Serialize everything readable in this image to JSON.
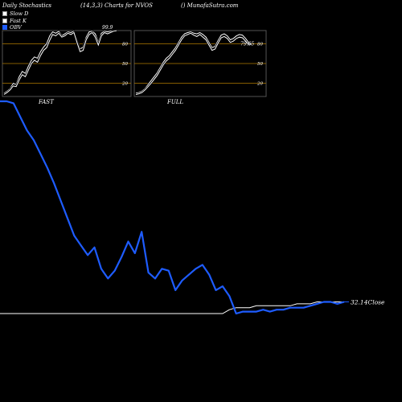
{
  "header": {
    "left": "Daily Stochastics",
    "center": "(14,3,3) Charts for NVOS",
    "right": "() MunafaSutra.com"
  },
  "legend": [
    {
      "label": "Slow D",
      "color": "#ffffff"
    },
    {
      "label": "Fast K",
      "color": "#ffffff"
    },
    {
      "label": "OBV",
      "color": "#1e5cff"
    }
  ],
  "colors": {
    "obv": "#1e5cff",
    "stoch": "#ffffff",
    "level": "#b07a00",
    "grid": "#555555"
  },
  "chart_data": [
    {
      "type": "line",
      "panel": "FAST",
      "title": "FAST",
      "ylim": [
        0,
        100
      ],
      "levels": [
        20,
        50,
        80
      ],
      "last_value_label": "99.9",
      "series": [
        {
          "values": [
            5,
            8,
            12,
            20,
            18,
            30,
            38,
            35,
            46,
            55,
            60,
            58,
            68,
            75,
            80,
            92,
            98,
            96,
            99,
            92,
            95,
            98,
            97,
            99,
            85,
            72,
            75,
            90,
            98,
            99,
            95,
            82,
            96,
            99,
            98,
            99,
            100,
            99
          ]
        },
        {
          "values": [
            3,
            6,
            10,
            16,
            15,
            25,
            33,
            30,
            40,
            50,
            55,
            52,
            62,
            70,
            74,
            85,
            94,
            92,
            96,
            90,
            92,
            96,
            94,
            97,
            82,
            68,
            70,
            86,
            94,
            97,
            90,
            78,
            92,
            97,
            95,
            97,
            99,
            99.9
          ]
        }
      ]
    },
    {
      "type": "line",
      "panel": "FULL",
      "title": "FULL",
      "ylim": [
        0,
        100
      ],
      "levels": [
        20,
        50,
        80
      ],
      "last_value_label": "79.65",
      "series": [
        {
          "values": [
            5,
            6,
            8,
            12,
            18,
            24,
            30,
            36,
            44,
            52,
            58,
            62,
            68,
            74,
            82,
            90,
            95,
            97,
            98,
            96,
            95,
            97,
            94,
            90,
            82,
            74,
            76,
            85,
            93,
            95,
            92,
            86,
            88,
            92,
            94,
            93,
            88,
            82,
            80
          ]
        },
        {
          "values": [
            3,
            4,
            6,
            10,
            15,
            20,
            26,
            32,
            40,
            48,
            54,
            58,
            64,
            70,
            78,
            86,
            92,
            94,
            96,
            93,
            91,
            94,
            90,
            86,
            78,
            70,
            72,
            81,
            89,
            91,
            88,
            82,
            84,
            88,
            90,
            89,
            84,
            79,
            79.65
          ]
        }
      ]
    },
    {
      "type": "line",
      "panel": "OBV",
      "last_value_label": "32.14Close",
      "series": [
        {
          "values": [
            100,
            100,
            99,
            92,
            85,
            80,
            73,
            66,
            58,
            49,
            40,
            31,
            26,
            21,
            25,
            14,
            9,
            13,
            20,
            28,
            22,
            33,
            12,
            9,
            14,
            13,
            3,
            8,
            11,
            14,
            16,
            11,
            3,
            5,
            0,
            -9,
            -8,
            -8,
            -8,
            -7,
            -8,
            -7,
            -7,
            -6,
            -6,
            -6,
            -5,
            -4,
            -3,
            -3,
            -4,
            -3
          ]
        },
        {
          "values": [
            -9,
            -9,
            -9,
            -9,
            -9,
            -9,
            -9,
            -9,
            -9,
            -9,
            -9,
            -9,
            -9,
            -9,
            -9,
            -9,
            -9,
            -9,
            -9,
            -9,
            -9,
            -9,
            -9,
            -9,
            -9,
            -9,
            -9,
            -9,
            -9,
            -9,
            -9,
            -9,
            -9,
            -9,
            -7,
            -6,
            -6,
            -6,
            -5,
            -5,
            -5,
            -5,
            -5,
            -5,
            -4,
            -4,
            -4,
            -3,
            -3,
            -3,
            -3,
            -3
          ]
        }
      ]
    }
  ]
}
